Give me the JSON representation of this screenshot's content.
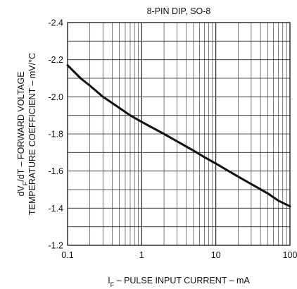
{
  "chart_data": {
    "type": "line",
    "title": "8-PIN DIP, SO-8",
    "xlabel": {
      "parts": [
        "I",
        "F",
        " – PULSE INPUT CURRENT – mA"
      ]
    },
    "ylabel": {
      "line1_parts": [
        "dV",
        "F",
        "/dT – FORWARD VOLTAGE"
      ],
      "line2": "TEMPERATURE COEFFICIENT – mV/°C"
    },
    "x_scale": "log",
    "xlim": [
      0.1,
      100
    ],
    "ylim": [
      -2.4,
      -1.2
    ],
    "x_ticks": [
      "0.1",
      "1",
      "10",
      "100"
    ],
    "y_ticks": [
      "-2.4",
      "-2.2",
      "-2.0",
      "-1.8",
      "-1.6",
      "-1.4",
      "-1.2"
    ],
    "grid": true,
    "series": [
      {
        "x": [
          0.1,
          0.15,
          0.2,
          0.3,
          0.5,
          0.7,
          1,
          2,
          3,
          5,
          7,
          10,
          20,
          30,
          50,
          70,
          100
        ],
        "y": [
          -2.17,
          -2.1,
          -2.06,
          -2.0,
          -1.94,
          -1.9,
          -1.865,
          -1.8,
          -1.76,
          -1.71,
          -1.675,
          -1.64,
          -1.57,
          -1.53,
          -1.48,
          -1.44,
          -1.41
        ],
        "color": "#111111"
      }
    ]
  }
}
